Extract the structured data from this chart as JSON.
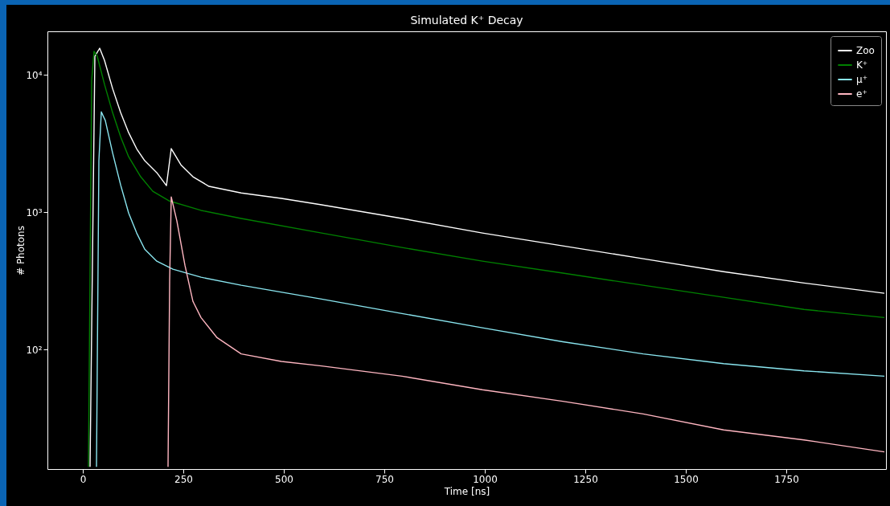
{
  "chart_data": {
    "type": "line",
    "title": "Simulated K⁺ Decay",
    "xlabel": "Time [ns]",
    "ylabel": "# Photons",
    "log": "y",
    "grid": false,
    "legend": "top right",
    "marker": "none",
    "line_style": "solid",
    "xlim": [
      -88,
      1998
    ],
    "xticks": [
      0,
      250,
      500,
      750,
      1000,
      1250,
      1500,
      1750
    ],
    "ylim": [
      13.5,
      20700
    ],
    "yticks": [
      {
        "value": 100,
        "label": "10²"
      },
      {
        "value": 1000,
        "label": "10³"
      },
      {
        "value": 10000,
        "label": "10⁴"
      }
    ],
    "series": [
      {
        "name": "Zoo",
        "color": "#ffffff",
        "x": [
          18,
          30,
          42,
          54,
          74,
          94,
          114,
          134,
          154,
          184,
          208,
          220,
          244,
          274,
          314,
          394,
          494,
          594,
          794,
          994,
          1194,
          1394,
          1594,
          1794,
          1994
        ],
        "values": [
          14,
          13600,
          15600,
          12700,
          7950,
          5310,
          3790,
          2890,
          2370,
          1940,
          1560,
          2900,
          2210,
          1810,
          1540,
          1380,
          1260,
          1130,
          900,
          705,
          568,
          458,
          369,
          305,
          257
        ]
      },
      {
        "name": "K⁺",
        "color": "#008000",
        "x": [
          14,
          22,
          28,
          36,
          54,
          74,
          94,
          114,
          144,
          174,
          214,
          294,
          394,
          594,
          794,
          994,
          1194,
          1394,
          1594,
          1794,
          1994
        ],
        "values": [
          14,
          9100,
          14800,
          13600,
          8500,
          5310,
          3540,
          2530,
          1810,
          1420,
          1210,
          1030,
          900,
          705,
          553,
          440,
          360,
          294,
          240,
          196,
          171
        ]
      },
      {
        "name": "μ⁺",
        "color": "#8ae6f0",
        "x": [
          34,
          40,
          46,
          56,
          74,
          94,
          114,
          134,
          154,
          184,
          224,
          294,
          394,
          594,
          794,
          994,
          1194,
          1394,
          1594,
          1794,
          1994
        ],
        "values": [
          14,
          2370,
          5370,
          4640,
          2710,
          1580,
          986,
          705,
          538,
          440,
          385,
          336,
          294,
          233,
          183,
          144,
          114,
          93,
          79,
          70,
          64
        ]
      },
      {
        "name": "e⁺",
        "color": "#ffb6c1",
        "x": [
          212,
          216,
          220,
          234,
          254,
          274,
          294,
          334,
          394,
          494,
          594,
          794,
          994,
          1194,
          1394,
          1594,
          1794,
          1994
        ],
        "values": [
          14,
          314,
          1290,
          863,
          411,
          224,
          171,
          122,
          93,
          82,
          76,
          64,
          51,
          42,
          34,
          26,
          22,
          18
        ]
      }
    ]
  }
}
